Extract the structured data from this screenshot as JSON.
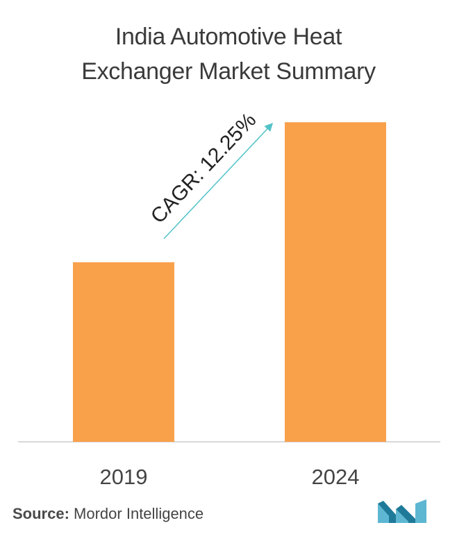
{
  "chart_data": {
    "type": "bar",
    "title_lines": [
      "India Automotive Heat",
      "Exchanger Market Summary"
    ],
    "categories": [
      "2019",
      "2024"
    ],
    "values": [
      1,
      1.78
    ],
    "ylim": [
      0,
      1.92
    ],
    "grid": false,
    "annotation": "CAGR: 12.25%",
    "bar_color": "#F9A04A",
    "arrow_color": "#52C3C8",
    "axis_color": "#cccccc"
  },
  "source": {
    "label": "Source:",
    "text": "Mordor Intelligence"
  },
  "logo": {
    "icon": "mordor-intelligence-logo",
    "colors": [
      "#5EB7D2",
      "#1F7A99"
    ]
  }
}
